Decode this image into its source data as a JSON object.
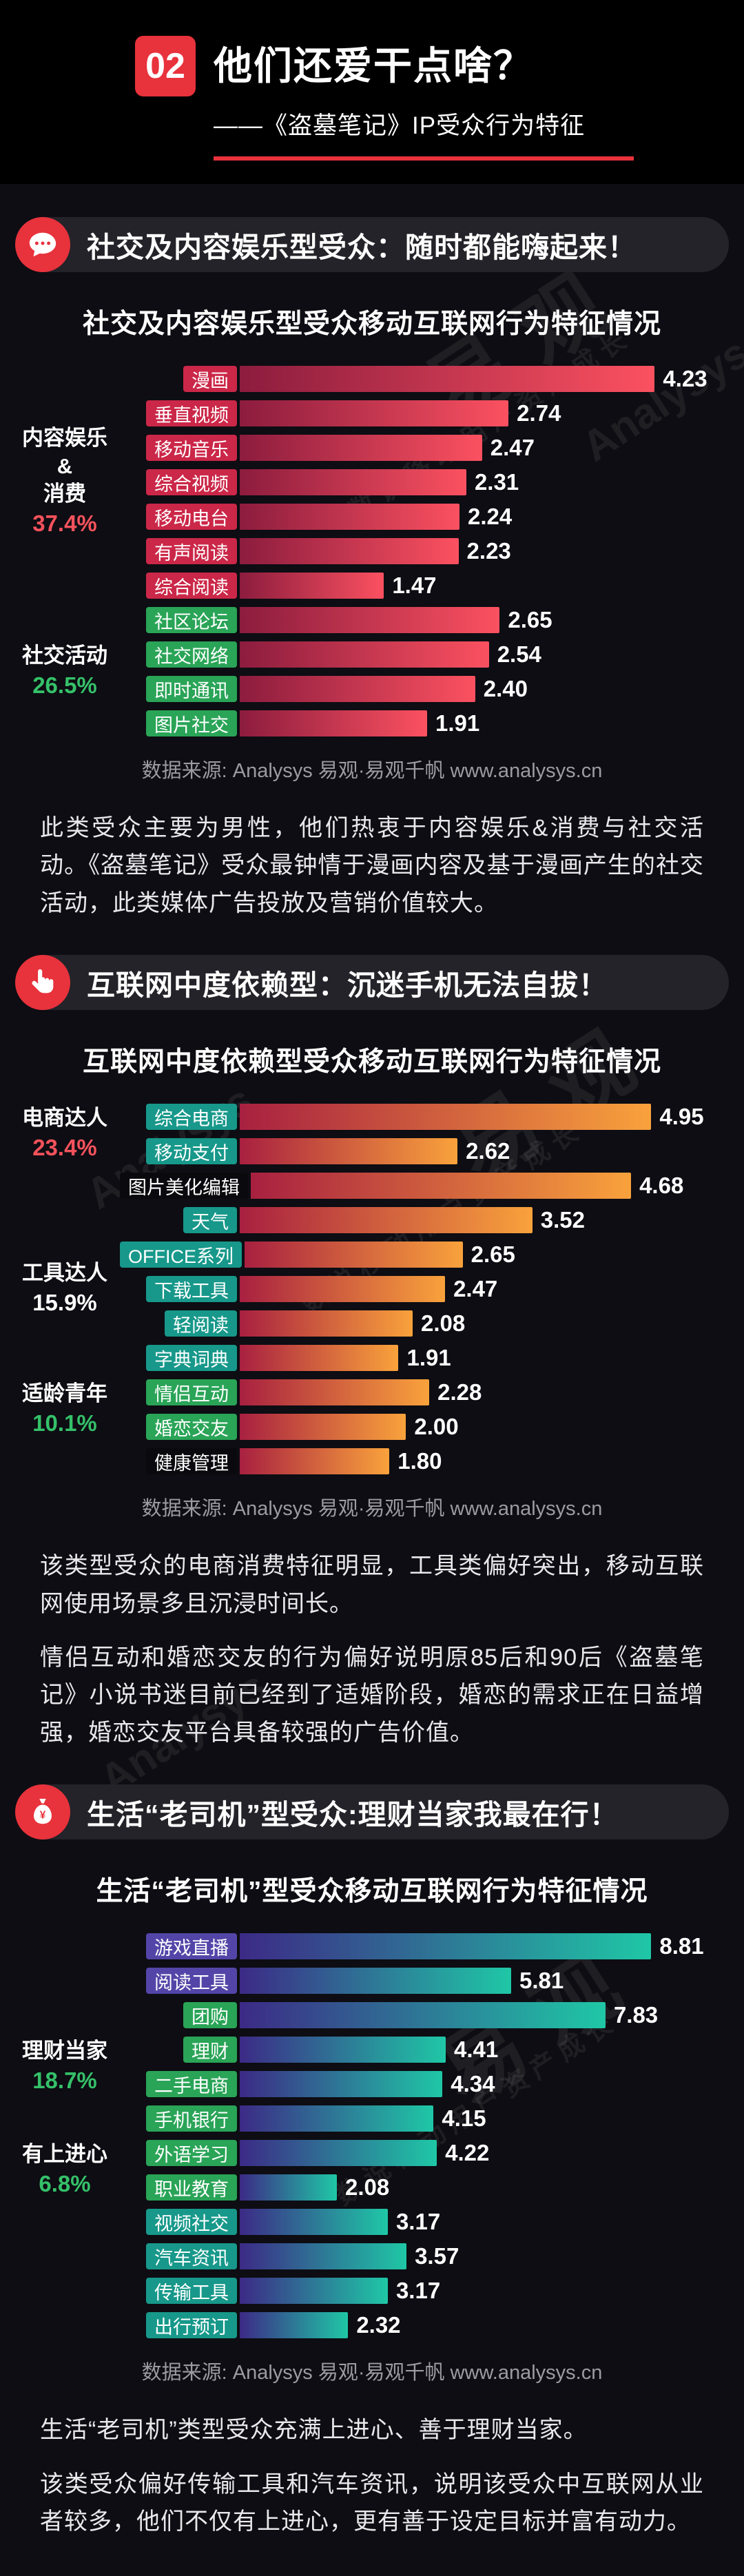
{
  "page": {
    "background": "#0d0d13",
    "header_background": "#000000",
    "accent": "#e8323c"
  },
  "watermarks": {
    "brand": "易观",
    "latin": "Analysys",
    "slogan": "数说移动用户资产成长"
  },
  "header": {
    "number": "02",
    "title": "他们还爱干点啥？",
    "subtitle": "——《盗墓笔记》IP受众行为特征"
  },
  "palette": {
    "red": "#cb2748",
    "green": "#2aa457",
    "teal": "#17988a",
    "purple": "#5345a8",
    "dark": "#0a0a0e"
  },
  "sections": [
    {
      "badge": "社交及内容娱乐型受众：随时都能嗨起来！",
      "icon": "chat-bubble-icon",
      "source": "数据来源: Analysys 易观·易观千帆 www.analysys.cn",
      "paragraphs": [
        "此类受众主要为男性，他们热衷于内容娱乐&消费与社交活动。《盗墓笔记》受众最钟情于漫画内容及基于漫画产生的社交活动，此类媒体广告投放及营销价值较大。"
      ]
    },
    {
      "badge": "互联网中度依赖型：沉迷手机无法自拔！",
      "icon": "tap-hand-icon",
      "source": "数据来源: Analysys 易观·易观千帆 www.analysys.cn",
      "paragraphs": [
        "该类型受众的电商消费特征明显，工具类偏好突出，移动互联网使用场景多且沉浸时间长。",
        "情侣互动和婚恋交友的行为偏好说明原85后和90后《盗墓笔记》小说书迷目前已经到了适婚阶段，婚恋的需求正在日益增强，婚恋交友平台具备较强的广告价值。"
      ]
    },
    {
      "badge": "生活“老司机”型受众:理财当家我最在行！",
      "icon": "money-bag-icon",
      "source": "数据来源: Analysys 易观·易观千帆 www.analysys.cn",
      "paragraphs": [
        "生活“老司机”类型受众充满上进心、善于理财当家。",
        "该类受众偏好传输工具和汽车资讯，说明该受众中互联网从业者较多，他们不仅有上进心，更有善于设定目标并富有动力。"
      ]
    }
  ],
  "chart_data": [
    {
      "type": "bar",
      "orientation": "horizontal",
      "title": "社交及内容娱乐型受众移动互联网行为特征情况",
      "categories": [
        "漫画",
        "垂直视频",
        "移动音乐",
        "综合视频",
        "移动电台",
        "有声阅读",
        "综合阅读",
        "社区论坛",
        "社交网络",
        "即时通讯",
        "图片社交"
      ],
      "values": [
        4.23,
        2.74,
        2.47,
        2.31,
        2.24,
        2.23,
        1.47,
        2.65,
        2.54,
        2.4,
        1.91
      ],
      "chip_colors": [
        "red",
        "red",
        "red",
        "red",
        "red",
        "red",
        "red",
        "green",
        "green",
        "green",
        "green"
      ],
      "bar_gradient": [
        "#8c1c3e",
        "#fb5160"
      ],
      "scale_max": 5.0,
      "xlim": [
        0,
        5
      ],
      "groups": [
        {
          "lines": [
            "内容娱乐",
            "&",
            "消费"
          ],
          "pct": "37.4%",
          "pct_color": "#f5525c",
          "start": 0,
          "span": 7
        },
        {
          "lines": [
            "社交活动"
          ],
          "pct": "26.5%",
          "pct_color": "#35c169",
          "start": 7,
          "span": 4
        }
      ]
    },
    {
      "type": "bar",
      "orientation": "horizontal",
      "title": "互联网中度依赖型受众移动互联网行为特征情况",
      "categories": [
        "综合电商",
        "移动支付",
        "图片美化编辑",
        "天气",
        "OFFICE系列",
        "下载工具",
        "轻阅读",
        "字典词典",
        "情侣互动",
        "婚恋交友",
        "健康管理"
      ],
      "values": [
        4.95,
        2.62,
        4.68,
        3.52,
        2.65,
        2.47,
        2.08,
        1.91,
        2.28,
        2.0,
        1.8
      ],
      "chip_colors": [
        "teal",
        "teal",
        "dark",
        "teal",
        "teal",
        "teal",
        "teal",
        "teal",
        "green",
        "green",
        "dark"
      ],
      "bar_gradient": [
        "#a82040",
        "#f9a23c"
      ],
      "scale_max": 5.9,
      "xlim": [
        0,
        5.9
      ],
      "groups": [
        {
          "lines": [
            "电商达人"
          ],
          "pct": "23.4%",
          "pct_color": "#f5525c",
          "start": 0,
          "span": 2
        },
        {
          "lines": [
            "工具达人"
          ],
          "pct": "15.9%",
          "pct_color": "#ffffff",
          "start": 3,
          "span": 5
        },
        {
          "lines": [
            "适龄青年"
          ],
          "pct": "10.1%",
          "pct_color": "#35c169",
          "start": 8,
          "span": 2
        }
      ]
    },
    {
      "type": "bar",
      "orientation": "horizontal",
      "title": "生活“老司机”型受众移动互联网行为特征情况",
      "categories": [
        "游戏直播",
        "阅读工具",
        "团购",
        "理财",
        "二手电商",
        "手机银行",
        "外语学习",
        "职业教育",
        "视频社交",
        "汽车资讯",
        "传输工具",
        "出行预订"
      ],
      "values": [
        8.81,
        5.81,
        7.83,
        4.41,
        4.34,
        4.15,
        4.22,
        2.08,
        3.17,
        3.57,
        3.17,
        2.32
      ],
      "chip_colors": [
        "purple",
        "purple",
        "green",
        "green",
        "green",
        "green",
        "green",
        "green",
        "teal",
        "teal",
        "teal",
        "teal"
      ],
      "bar_gradient": [
        "#3c2a86",
        "#1fc7a6"
      ],
      "scale_max": 10.5,
      "xlim": [
        0,
        10.5
      ],
      "groups": [
        {
          "lines": [
            "理财当家"
          ],
          "pct": "18.7%",
          "pct_color": "#35c169",
          "start": 2,
          "span": 4
        },
        {
          "lines": [
            "有上进心"
          ],
          "pct": "6.8%",
          "pct_color": "#35c169",
          "start": 6,
          "span": 2
        }
      ]
    }
  ]
}
